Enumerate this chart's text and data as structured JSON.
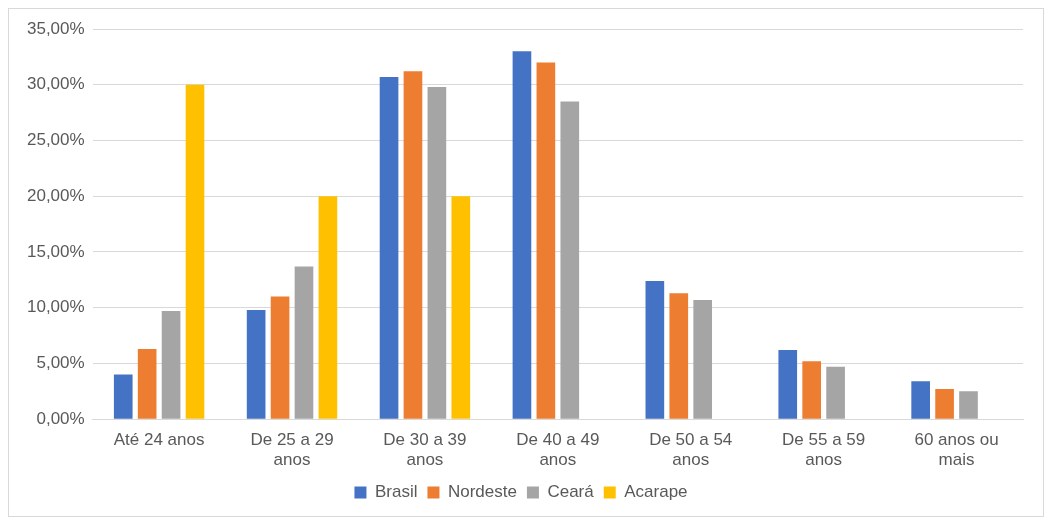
{
  "chart_data": {
    "type": "bar",
    "categories": [
      "Até 24 anos",
      "De 25 a 29 anos",
      "De 30 a 39 anos",
      "De 40 a 49 anos",
      "De 50 a 54 anos",
      "De 55 a 59 anos",
      "60 anos ou mais"
    ],
    "series": [
      {
        "name": "Brasil",
        "color": "#4472c4",
        "values": [
          4.0,
          9.8,
          30.7,
          33.0,
          12.4,
          6.2,
          3.4
        ]
      },
      {
        "name": "Nordeste",
        "color": "#ed7d31",
        "values": [
          6.3,
          11.0,
          31.2,
          32.0,
          11.3,
          5.2,
          2.7
        ]
      },
      {
        "name": "Ceará",
        "color": "#a5a5a5",
        "values": [
          9.7,
          13.7,
          29.8,
          28.5,
          10.7,
          4.7,
          2.5
        ]
      },
      {
        "name": "Acarape",
        "color": "#ffc000",
        "values": [
          30.0,
          20.0,
          20.0,
          0,
          0,
          0,
          0
        ]
      }
    ],
    "ylim": [
      0,
      35
    ],
    "yticks": [
      {
        "value": 0,
        "label": "0,00%"
      },
      {
        "value": 5,
        "label": "5,00%"
      },
      {
        "value": 10,
        "label": "10,00%"
      },
      {
        "value": 15,
        "label": "15,00%"
      },
      {
        "value": 20,
        "label": "20,00%"
      },
      {
        "value": 25,
        "label": "25,00%"
      },
      {
        "value": 30,
        "label": "30,00%"
      },
      {
        "value": 35,
        "label": "35,00%"
      }
    ],
    "grid": "y",
    "legend": "bottom"
  }
}
